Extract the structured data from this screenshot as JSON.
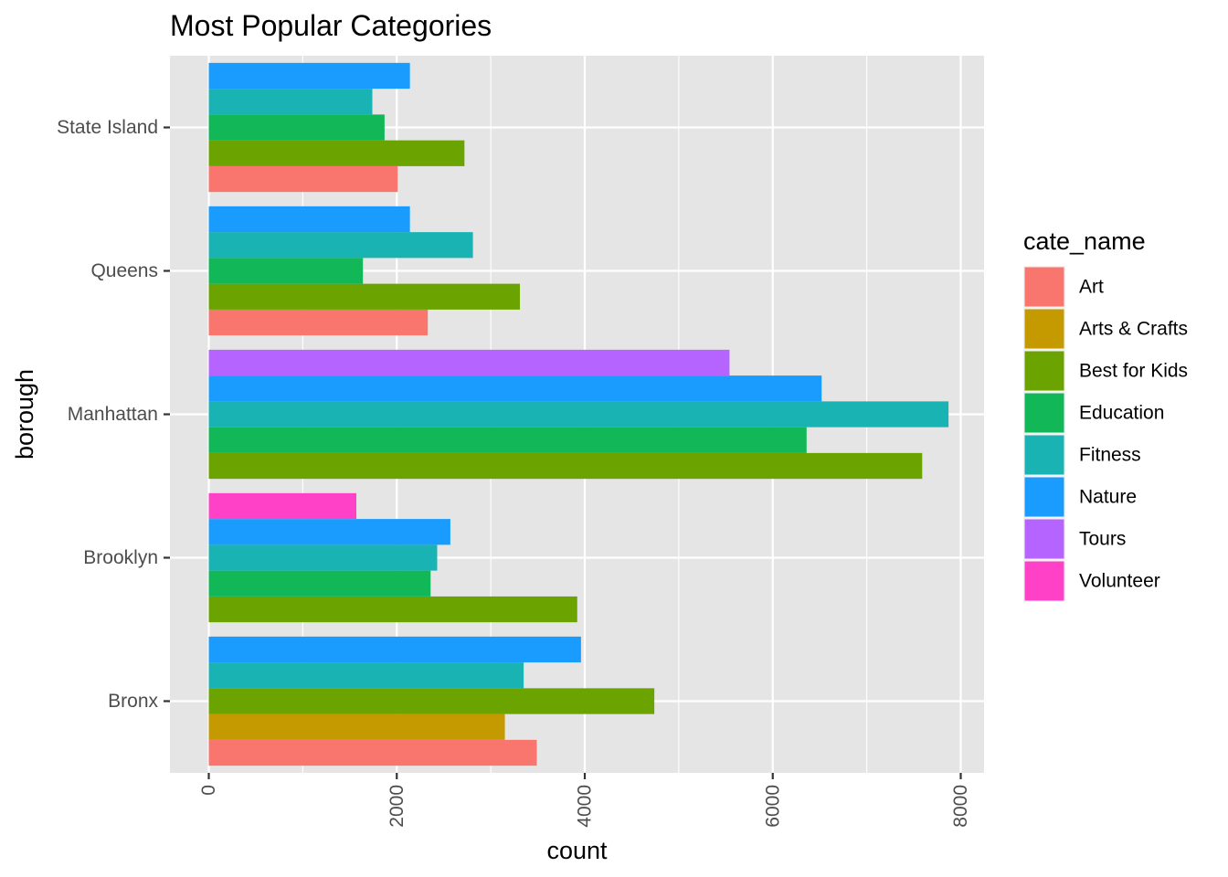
{
  "chart_data": {
    "type": "bar",
    "orientation": "horizontal",
    "title": "Most Popular Categories",
    "xlabel": "count",
    "ylabel": "borough",
    "xlim": [
      -400,
      8250
    ],
    "x_ticks": [
      0,
      2000,
      4000,
      6000,
      8000
    ],
    "x_tick_labels": [
      "0",
      "2000",
      "4000",
      "6000",
      "8000"
    ],
    "categories": [
      "Bronx",
      "Brooklyn",
      "Manhattan",
      "Queens",
      "State Island"
    ],
    "grid": true,
    "legend": {
      "title": "cate_name",
      "placement": "right",
      "entries": [
        {
          "name": "Art",
          "color": "#F8766D"
        },
        {
          "name": "Arts & Crafts",
          "color": "#C49A00"
        },
        {
          "name": "Best for Kids",
          "color": "#6BA300"
        },
        {
          "name": "Education",
          "color": "#12B757"
        },
        {
          "name": "Fitness",
          "color": "#19B3B4"
        },
        {
          "name": "Nature",
          "color": "#1A9CFF"
        },
        {
          "name": "Tours",
          "color": "#B564FF"
        },
        {
          "name": "Volunteer",
          "color": "#FF41C8"
        }
      ]
    },
    "groups": [
      {
        "borough": "Bronx",
        "bars": [
          {
            "category": "Art",
            "value": 3490
          },
          {
            "category": "Arts & Crafts",
            "value": 3150
          },
          {
            "category": "Best for Kids",
            "value": 4740
          },
          {
            "category": "Fitness",
            "value": 3350
          },
          {
            "category": "Nature",
            "value": 3960
          }
        ]
      },
      {
        "borough": "Brooklyn",
        "bars": [
          {
            "category": "Best for Kids",
            "value": 3920
          },
          {
            "category": "Education",
            "value": 2360
          },
          {
            "category": "Fitness",
            "value": 2430
          },
          {
            "category": "Nature",
            "value": 2570
          },
          {
            "category": "Volunteer",
            "value": 1570
          }
        ]
      },
      {
        "borough": "Manhattan",
        "bars": [
          {
            "category": "Best for Kids",
            "value": 7590
          },
          {
            "category": "Education",
            "value": 6360
          },
          {
            "category": "Fitness",
            "value": 7870
          },
          {
            "category": "Nature",
            "value": 6520
          },
          {
            "category": "Tours",
            "value": 5540
          }
        ]
      },
      {
        "borough": "Queens",
        "bars": [
          {
            "category": "Art",
            "value": 2330
          },
          {
            "category": "Best for Kids",
            "value": 3310
          },
          {
            "category": "Education",
            "value": 1640
          },
          {
            "category": "Fitness",
            "value": 2810
          },
          {
            "category": "Nature",
            "value": 2140
          }
        ]
      },
      {
        "borough": "State Island",
        "bars": [
          {
            "category": "Art",
            "value": 2010
          },
          {
            "category": "Best for Kids",
            "value": 2720
          },
          {
            "category": "Education",
            "value": 1870
          },
          {
            "category": "Fitness",
            "value": 1740
          },
          {
            "category": "Nature",
            "value": 2140
          }
        ]
      }
    ]
  },
  "colors": {
    "panel_background": "#E5E5E5",
    "grid": "#FFFFFF",
    "tick_text": "#4D4D4D"
  }
}
